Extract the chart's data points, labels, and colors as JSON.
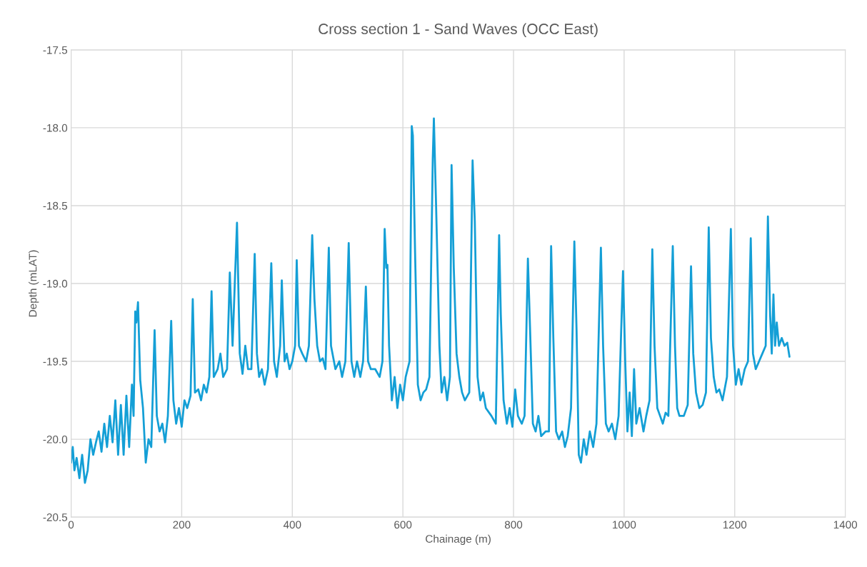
{
  "chart_data": {
    "type": "line",
    "title": "Cross section 1 - Sand Waves (OCC East)",
    "xlabel": "Chainage (m)",
    "ylabel": "Depth (mLAT)",
    "xlim": [
      0,
      1400
    ],
    "xticks": [
      0,
      200,
      400,
      600,
      800,
      1000,
      1200,
      1400
    ],
    "ylim": [
      -20.5,
      -17.5
    ],
    "yticks": [
      {
        "value": -20.5,
        "label": "-20.5"
      },
      {
        "value": -20.0,
        "label": "-20.0"
      },
      {
        "value": -19.5,
        "label": "-19.5"
      },
      {
        "value": -19.0,
        "label": "-19.0"
      },
      {
        "value": -18.5,
        "label": "-18.5"
      },
      {
        "value": -18.0,
        "label": "-18.0"
      },
      {
        "value": -17.5,
        "label": "-17.5"
      }
    ],
    "grid": true,
    "marker": "none",
    "line_style": "solid",
    "series": [
      {
        "color": "#149fd6",
        "x": [
          0,
          3,
          6,
          10,
          15,
          20,
          25,
          30,
          35,
          40,
          45,
          50,
          55,
          60,
          65,
          70,
          75,
          80,
          85,
          90,
          95,
          100,
          105,
          110,
          113,
          116,
          118,
          121,
          125,
          130,
          135,
          140,
          145,
          151,
          155,
          160,
          165,
          170,
          175,
          181,
          185,
          190,
          195,
          200,
          205,
          210,
          216,
          220,
          224,
          230,
          235,
          240,
          245,
          250,
          254,
          258,
          265,
          270,
          275,
          282,
          287,
          292,
          296,
          300,
          305,
          310,
          315,
          320,
          326,
          332,
          336,
          340,
          345,
          350,
          356,
          362,
          367,
          372,
          378,
          381,
          386,
          390,
          395,
          400,
          405,
          408,
          412,
          418,
          425,
          430,
          436,
          440,
          445,
          450,
          455,
          460,
          466,
          470,
          478,
          485,
          490,
          496,
          502,
          507,
          512,
          517,
          523,
          528,
          533,
          537,
          542,
          550,
          558,
          563,
          567,
          570,
          572,
          575,
          580,
          585,
          590,
          595,
          600,
          605,
          612,
          616,
          618,
          622,
          627,
          632,
          637,
          642,
          648,
          654,
          656,
          660,
          666,
          670,
          675,
          680,
          685,
          688,
          692,
          697,
          702,
          707,
          712,
          720,
          726,
          730,
          735,
          740,
          745,
          750,
          760,
          768,
          774,
          777,
          782,
          788,
          793,
          798,
          803,
          808,
          815,
          820,
          826,
          830,
          835,
          840,
          845,
          850,
          858,
          864,
          868,
          872,
          877,
          882,
          888,
          893,
          898,
          904,
          910,
          914,
          918,
          922,
          927,
          932,
          938,
          944,
          950,
          958,
          962,
          967,
          972,
          978,
          984,
          990,
          998,
          1002,
          1006,
          1010,
          1014,
          1018,
          1022,
          1028,
          1035,
          1040,
          1046,
          1051,
          1055,
          1060,
          1065,
          1070,
          1075,
          1080,
          1088,
          1092,
          1096,
          1100,
          1108,
          1115,
          1121,
          1125,
          1130,
          1136,
          1142,
          1148,
          1153,
          1157,
          1162,
          1167,
          1172,
          1178,
          1186,
          1193,
          1197,
          1202,
          1207,
          1212,
          1218,
          1224,
          1229,
          1233,
          1238,
          1244,
          1250,
          1256,
          1260,
          1264,
          1267,
          1270,
          1273,
          1276,
          1280,
          1285,
          1290,
          1295,
          1299
        ],
        "values": [
          -20.15,
          -20.05,
          -20.2,
          -20.12,
          -20.25,
          -20.1,
          -20.28,
          -20.2,
          -20.0,
          -20.1,
          -20.02,
          -19.95,
          -20.08,
          -19.9,
          -20.05,
          -19.85,
          -20.02,
          -19.75,
          -20.1,
          -19.78,
          -20.1,
          -19.72,
          -20.05,
          -19.65,
          -19.85,
          -19.18,
          -19.25,
          -19.12,
          -19.62,
          -19.8,
          -20.15,
          -20.0,
          -20.05,
          -19.3,
          -19.85,
          -19.95,
          -19.9,
          -20.02,
          -19.85,
          -19.24,
          -19.75,
          -19.9,
          -19.8,
          -19.92,
          -19.75,
          -19.8,
          -19.72,
          -19.1,
          -19.7,
          -19.68,
          -19.75,
          -19.65,
          -19.7,
          -19.6,
          -19.05,
          -19.6,
          -19.55,
          -19.45,
          -19.6,
          -19.55,
          -18.93,
          -19.4,
          -19.0,
          -18.61,
          -19.45,
          -19.58,
          -19.4,
          -19.55,
          -19.55,
          -18.81,
          -19.45,
          -19.6,
          -19.55,
          -19.65,
          -19.55,
          -18.87,
          -19.5,
          -19.6,
          -19.4,
          -18.98,
          -19.5,
          -19.45,
          -19.55,
          -19.5,
          -19.4,
          -18.85,
          -19.4,
          -19.45,
          -19.5,
          -19.4,
          -18.69,
          -19.1,
          -19.4,
          -19.5,
          -19.48,
          -19.55,
          -18.77,
          -19.4,
          -19.55,
          -19.5,
          -19.6,
          -19.5,
          -18.74,
          -19.5,
          -19.6,
          -19.5,
          -19.6,
          -19.5,
          -19.02,
          -19.5,
          -19.55,
          -19.55,
          -19.6,
          -19.5,
          -18.65,
          -18.9,
          -18.88,
          -19.4,
          -19.75,
          -19.6,
          -19.8,
          -19.65,
          -19.75,
          -19.6,
          -19.5,
          -17.99,
          -18.05,
          -18.8,
          -19.65,
          -19.75,
          -19.7,
          -19.68,
          -19.6,
          -18.2,
          -17.94,
          -18.5,
          -19.4,
          -19.7,
          -19.6,
          -19.75,
          -19.6,
          -18.24,
          -18.9,
          -19.45,
          -19.6,
          -19.7,
          -19.75,
          -19.7,
          -18.21,
          -18.6,
          -19.6,
          -19.75,
          -19.7,
          -19.8,
          -19.85,
          -19.9,
          -18.69,
          -19.2,
          -19.75,
          -19.9,
          -19.8,
          -19.92,
          -19.68,
          -19.85,
          -19.9,
          -19.85,
          -18.84,
          -19.3,
          -19.9,
          -19.95,
          -19.85,
          -19.98,
          -19.95,
          -19.95,
          -18.76,
          -19.35,
          -19.95,
          -20.0,
          -19.95,
          -20.05,
          -19.98,
          -19.8,
          -18.73,
          -19.3,
          -20.1,
          -20.15,
          -20.0,
          -20.1,
          -19.95,
          -20.05,
          -19.9,
          -18.77,
          -19.4,
          -19.9,
          -19.95,
          -19.9,
          -20.0,
          -19.85,
          -18.92,
          -19.5,
          -19.95,
          -19.7,
          -19.98,
          -19.55,
          -19.9,
          -19.8,
          -19.95,
          -19.85,
          -19.75,
          -18.78,
          -19.4,
          -19.8,
          -19.85,
          -19.9,
          -19.83,
          -19.85,
          -18.76,
          -19.4,
          -19.8,
          -19.85,
          -19.85,
          -19.78,
          -18.89,
          -19.45,
          -19.7,
          -19.8,
          -19.78,
          -19.7,
          -18.64,
          -19.35,
          -19.6,
          -19.7,
          -19.68,
          -19.75,
          -19.6,
          -18.65,
          -19.4,
          -19.65,
          -19.55,
          -19.65,
          -19.55,
          -19.5,
          -18.71,
          -19.45,
          -19.55,
          -19.5,
          -19.45,
          -19.4,
          -18.57,
          -19.2,
          -19.45,
          -19.07,
          -19.4,
          -19.25,
          -19.4,
          -19.35,
          -19.4,
          -19.38,
          -19.47
        ]
      }
    ]
  }
}
